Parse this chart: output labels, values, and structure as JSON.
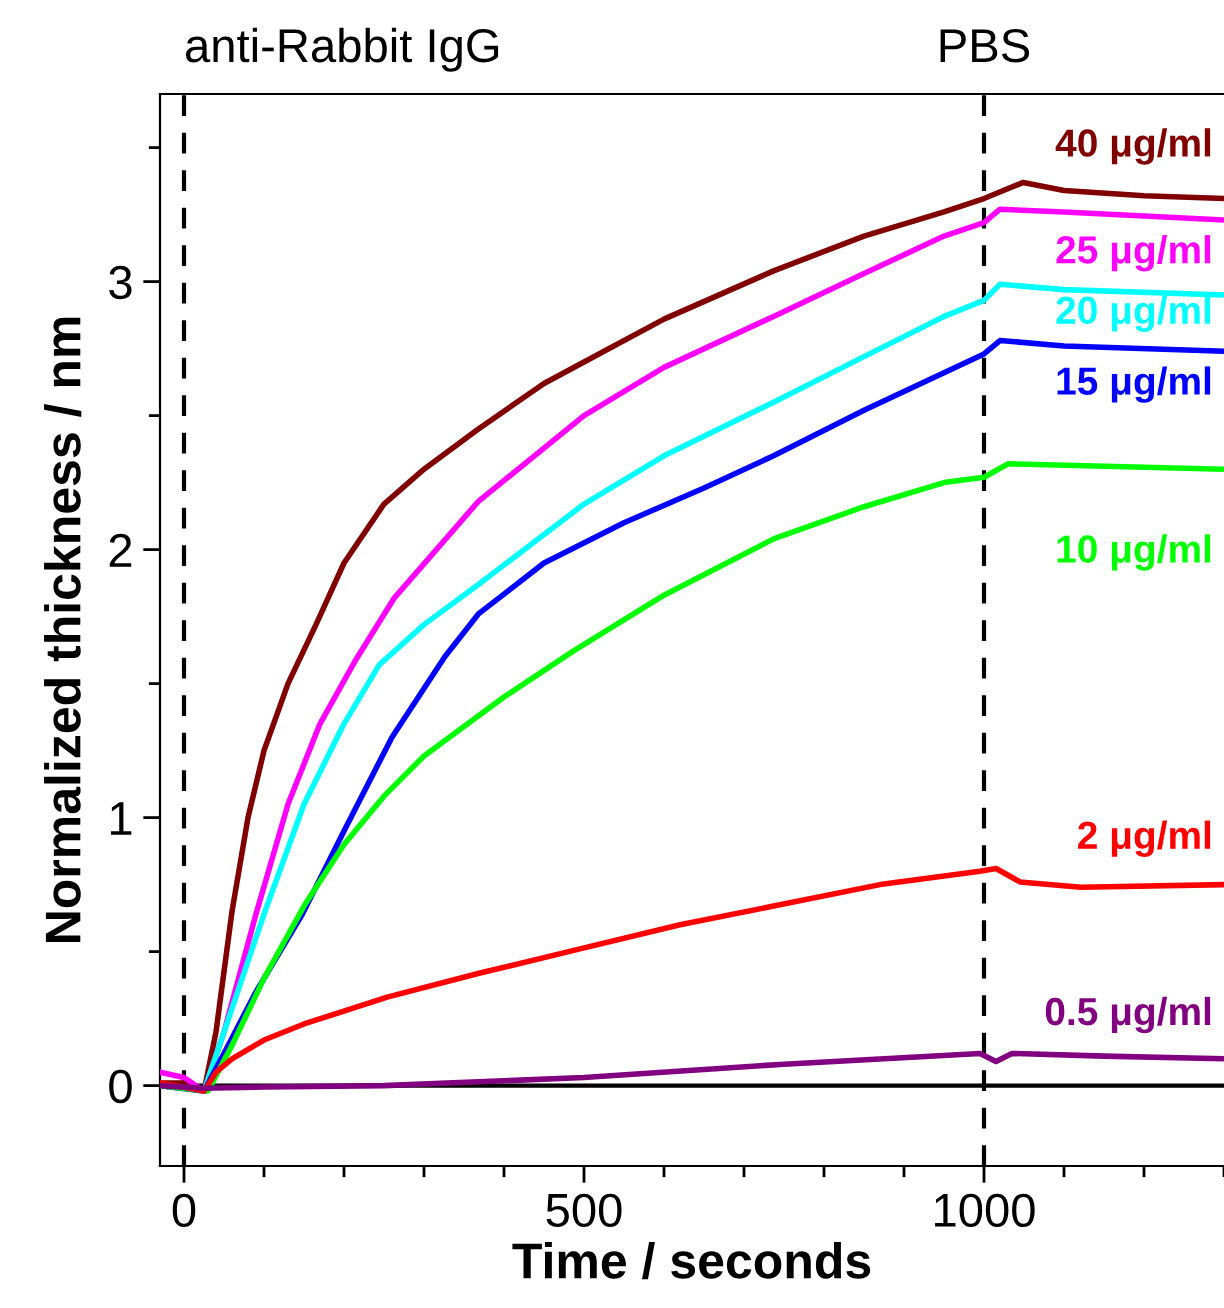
{
  "chart_data": {
    "type": "line",
    "xlabel": "Time / seconds",
    "ylabel": "Normalized thickness / nm",
    "xlim": [
      -30,
      1300
    ],
    "ylim": [
      -0.3,
      3.7
    ],
    "xticks": [
      0,
      500,
      1000
    ],
    "yticks": [
      0,
      1,
      2,
      3
    ],
    "grid": false,
    "legend": false,
    "marker": "none",
    "line_style": "solid",
    "ref_lines": [
      {
        "axis": "x",
        "value": 0,
        "label": "anti-Rabbit IgG",
        "line_style": "dashed",
        "color": "#000000"
      },
      {
        "axis": "x",
        "value": 1000,
        "label": "PBS",
        "line_style": "dashed",
        "color": "#000000"
      },
      {
        "axis": "y",
        "value": 0,
        "line_style": "solid",
        "color": "#000000"
      }
    ],
    "series": [
      {
        "name": "40 μg/ml",
        "color": "#800000",
        "x": [
          -30,
          0,
          25,
          40,
          60,
          80,
          100,
          130,
          165,
          200,
          250,
          300,
          368,
          450,
          500,
          600,
          737,
          850,
          950,
          1000,
          1049,
          1100,
          1200,
          1300
        ],
        "values": [
          0.01,
          0.01,
          -0.02,
          0.2,
          0.65,
          1.0,
          1.25,
          1.5,
          1.72,
          1.95,
          2.17,
          2.3,
          2.45,
          2.62,
          2.7,
          2.86,
          3.04,
          3.17,
          3.26,
          3.31,
          3.37,
          3.34,
          3.32,
          3.31
        ]
      },
      {
        "name": "25 μg/ml",
        "color": "#ff00ff",
        "x": [
          -30,
          0,
          25,
          50,
          90,
          130,
          170,
          215,
          263,
          368,
          500,
          600,
          737,
          850,
          950,
          1000,
          1020,
          1100,
          1300
        ],
        "values": [
          0.05,
          0.03,
          -0.02,
          0.2,
          0.64,
          1.05,
          1.35,
          1.59,
          1.82,
          2.18,
          2.5,
          2.68,
          2.87,
          3.03,
          3.17,
          3.22,
          3.27,
          3.26,
          3.23
        ]
      },
      {
        "name": "20 μg/ml",
        "color": "#00ffff",
        "x": [
          -30,
          25,
          50,
          100,
          150,
          200,
          244,
          300,
          368,
          500,
          600,
          737,
          850,
          950,
          1000,
          1020,
          1100,
          1300
        ],
        "values": [
          0.0,
          -0.02,
          0.2,
          0.64,
          1.05,
          1.35,
          1.57,
          1.72,
          1.87,
          2.17,
          2.35,
          2.55,
          2.72,
          2.87,
          2.93,
          2.99,
          2.97,
          2.95
        ]
      },
      {
        "name": "15 μg/ml",
        "color": "#0000ff",
        "x": [
          -30,
          25,
          50,
          90,
          148,
          200,
          260,
          326,
          368,
          450,
          550,
          650,
          737,
          850,
          950,
          1000,
          1020,
          1100,
          1300
        ],
        "values": [
          0.0,
          -0.02,
          0.12,
          0.35,
          0.64,
          0.95,
          1.3,
          1.6,
          1.76,
          1.95,
          2.1,
          2.23,
          2.35,
          2.52,
          2.66,
          2.73,
          2.78,
          2.76,
          2.74
        ]
      },
      {
        "name": "10 μg/ml",
        "color": "#00ff00",
        "x": [
          -30,
          30,
          60,
          100,
          150,
          200,
          250,
          300,
          400,
          486,
          600,
          737,
          850,
          950,
          1000,
          1030,
          1300
        ],
        "values": [
          0.0,
          -0.02,
          0.15,
          0.4,
          0.67,
          0.9,
          1.08,
          1.23,
          1.45,
          1.62,
          1.83,
          2.04,
          2.16,
          2.25,
          2.27,
          2.32,
          2.3
        ]
      },
      {
        "name": "2 μg/ml",
        "color": "#ff0000",
        "x": [
          -30,
          25,
          40,
          60,
          100,
          150,
          254,
          370,
          495,
          620,
          737,
          870,
          995,
          1015,
          1045,
          1121,
          1300
        ],
        "values": [
          0.01,
          -0.02,
          0.05,
          0.1,
          0.17,
          0.23,
          0.33,
          0.42,
          0.51,
          0.6,
          0.67,
          0.75,
          0.8,
          0.81,
          0.76,
          0.74,
          0.75
        ]
      },
      {
        "name": "0.5 μg/ml",
        "color": "#800080",
        "x": [
          -30,
          25,
          100,
          250,
          500,
          750,
          995,
          1015,
          1035,
          1150,
          1300
        ],
        "values": [
          0.0,
          -0.01,
          -0.005,
          0.0,
          0.03,
          0.08,
          0.12,
          0.09,
          0.12,
          0.11,
          0.1
        ]
      }
    ]
  }
}
